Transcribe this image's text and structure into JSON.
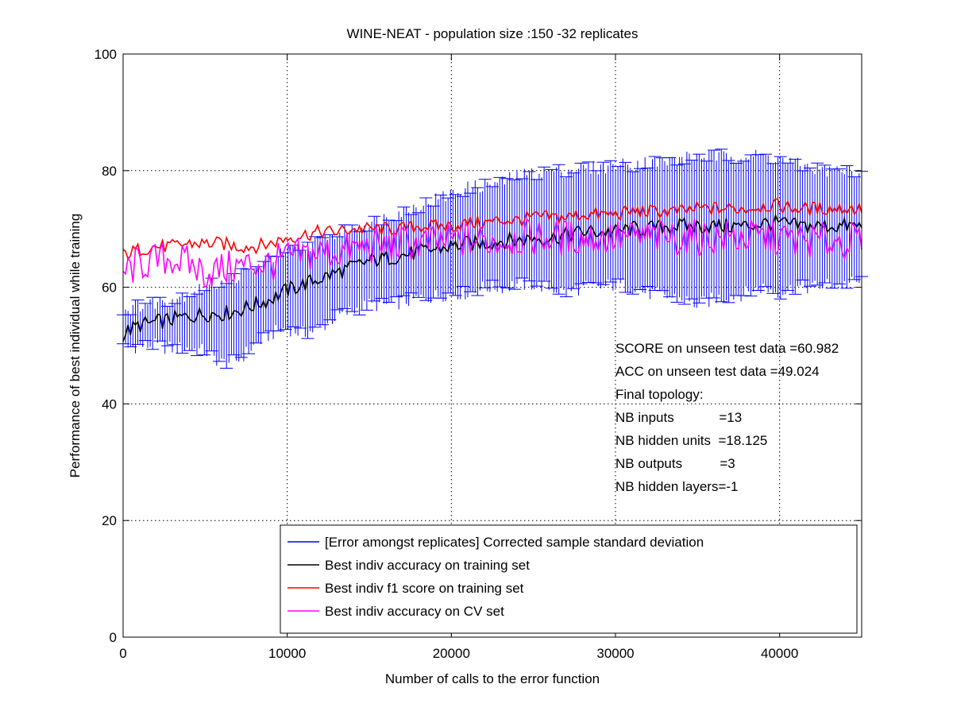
{
  "chart_data": {
    "type": "line",
    "title": "WINE-NEAT - population size :150 -32 replicates",
    "xlabel": "Number of calls to the error function",
    "ylabel": "Performance of best individual while training",
    "xlim": [
      0,
      45000
    ],
    "ylim": [
      0,
      100
    ],
    "xticks": [
      0,
      10000,
      20000,
      30000,
      40000
    ],
    "yticks": [
      0,
      20,
      40,
      60,
      80,
      100
    ],
    "grid": true,
    "legend_placement": "bottom-right",
    "colors": {
      "error": "#0000ff",
      "train_acc": "#000000",
      "train_f1": "#ff0000",
      "cv_acc": "#ff00ff"
    },
    "x": [
      0,
      1000,
      2000,
      3000,
      4000,
      5000,
      6000,
      7000,
      8000,
      9000,
      10000,
      11000,
      12000,
      13000,
      14000,
      15000,
      16000,
      17000,
      18000,
      19000,
      20000,
      21000,
      22000,
      23000,
      24000,
      25000,
      26000,
      27000,
      28000,
      29000,
      30000,
      31000,
      32000,
      33000,
      34000,
      35000,
      36000,
      37000,
      38000,
      39000,
      40000,
      41000,
      42000,
      43000,
      44000,
      45000
    ],
    "series": [
      {
        "name": "[Error amongst replicates] Corrected sample standard deviation",
        "kind": "errorbar",
        "about": "Best indiv accuracy on training set",
        "lower": [
          49.5,
          50,
          50,
          49.5,
          49.5,
          49,
          47,
          47.5,
          50,
          52,
          53,
          52,
          53,
          55,
          56,
          57,
          57,
          57.5,
          58,
          58.5,
          59,
          59,
          60,
          60,
          60.5,
          60.5,
          60,
          59,
          60,
          60,
          60.5,
          60,
          59,
          58.5,
          58,
          57,
          58,
          58.5,
          59,
          60,
          59,
          60,
          60,
          60.5,
          60.5,
          61
        ],
        "upper": [
          56,
          57,
          57.5,
          58,
          59,
          60,
          61,
          62,
          63,
          65,
          66,
          67,
          68,
          69,
          70,
          71,
          72,
          73,
          74,
          75,
          76,
          77,
          77.5,
          78,
          79,
          79.5,
          80,
          80,
          80.5,
          80.5,
          81,
          81,
          81.5,
          81.5,
          82,
          82.5,
          82.5,
          82.5,
          82.5,
          82.5,
          82,
          81,
          80.5,
          80,
          80,
          80
        ]
      },
      {
        "name": "Best indiv accuracy on training set",
        "values": [
          52,
          53.5,
          54,
          54.5,
          55,
          55.5,
          55.5,
          56,
          57,
          58,
          59.5,
          60.5,
          61.5,
          62.5,
          63.5,
          64.5,
          65,
          65.5,
          66,
          66.5,
          67,
          67.5,
          67.5,
          68,
          68,
          68.5,
          68.5,
          69,
          69.5,
          69.5,
          69.5,
          70,
          70,
          70.5,
          70.5,
          70.5,
          70.5,
          70.5,
          70.5,
          71,
          71,
          70.5,
          70.5,
          70.5,
          70.5,
          70.5
        ]
      },
      {
        "name": "Best indiv f1 score on training set",
        "values": [
          65.5,
          66.5,
          67,
          67,
          67.5,
          67.5,
          67.5,
          67,
          67,
          67.5,
          68.5,
          69,
          69.5,
          69.5,
          70,
          70,
          70,
          70,
          70.5,
          70.5,
          70.5,
          71,
          71,
          71.5,
          71.5,
          72,
          72,
          72,
          72.5,
          72.5,
          72.5,
          73,
          73,
          73,
          73,
          73.5,
          73.5,
          73.5,
          73.5,
          74,
          74,
          73.5,
          73.5,
          73.5,
          73.5,
          73.5
        ]
      },
      {
        "name": "Best indiv accuracy on CV set",
        "values": [
          62.5,
          64,
          64.5,
          65,
          64,
          62.5,
          63,
          63.5,
          64,
          64,
          65,
          65.5,
          66,
          66,
          66.5,
          67,
          67,
          67.5,
          67.5,
          67.5,
          68,
          68,
          68,
          68,
          68.5,
          68.5,
          68.5,
          68.5,
          68.5,
          68.5,
          68.5,
          68.5,
          68.5,
          68.5,
          68.5,
          68.5,
          68.5,
          68.5,
          68.5,
          68.5,
          68.5,
          68,
          68,
          68,
          68,
          68
        ]
      }
    ],
    "annotations": [
      "SCORE on unseen test data =60.982",
      "ACC on unseen test data =49.024",
      "Final topology:",
      "NB inputs            =13",
      "NB hidden units  =18.125",
      "NB outputs          =3",
      "NB hidden layers=-1"
    ]
  }
}
